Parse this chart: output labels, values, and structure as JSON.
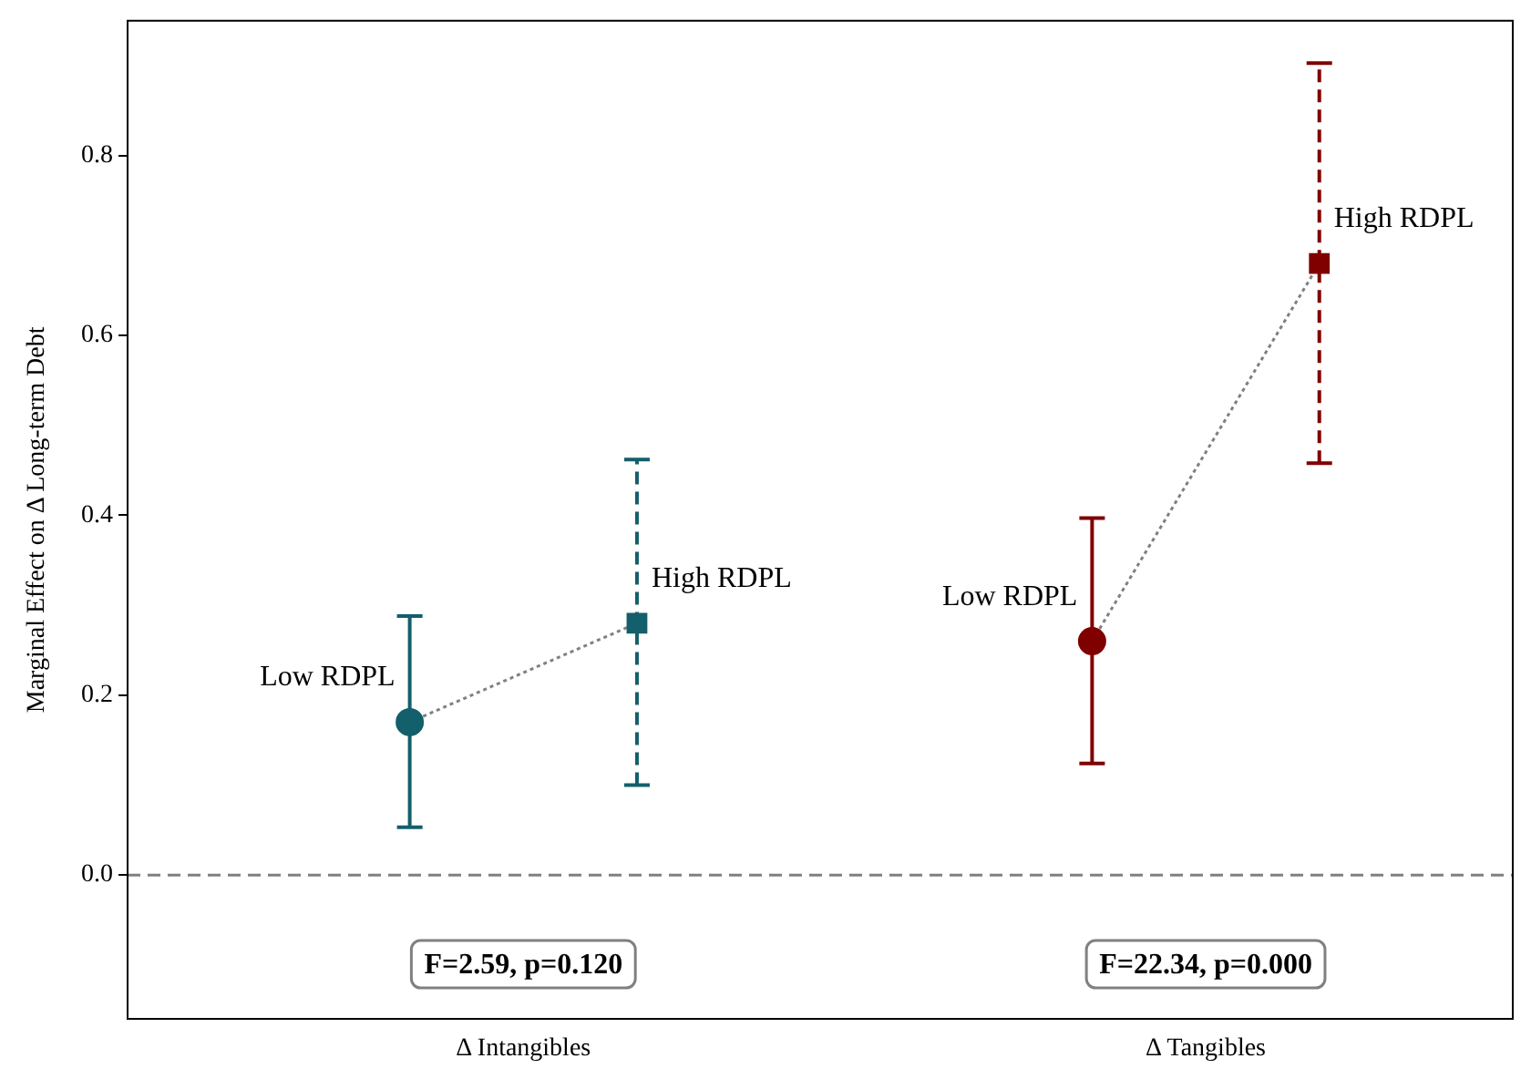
{
  "chart_data": {
    "type": "scatter",
    "ylabel": "Marginal Effect on Δ Long-term Debt",
    "categories": [
      "Δ Intangibles",
      "Δ Tangibles"
    ],
    "ylim": [
      -0.16,
      0.95
    ],
    "yticks": [
      {
        "value": 0,
        "label": "0.0"
      },
      {
        "value": 0.2,
        "label": "0.2"
      },
      {
        "value": 0.4,
        "label": "0.4"
      },
      {
        "value": 0.6,
        "label": "0.6"
      },
      {
        "value": 0.8,
        "label": "0.8"
      }
    ],
    "grid": false,
    "legend": false,
    "series": [
      {
        "name": "Low RDPL",
        "x": [
          "Δ Intangibles"
        ],
        "values": [
          0.17
        ],
        "errors": [
          [
            0.053,
            0.288
          ]
        ],
        "color": "#135f6b",
        "marker": "circle",
        "line_style": "solid"
      },
      {
        "name": "High RDPL",
        "x": [
          "Δ Intangibles"
        ],
        "values": [
          0.28
        ],
        "errors": [
          [
            0.1,
            0.462
          ]
        ],
        "color": "#135f6b",
        "marker": "square",
        "line_style": "dashed"
      },
      {
        "name": "Low RDPL",
        "x": [
          "Δ Tangibles"
        ],
        "values": [
          0.26
        ],
        "errors": [
          [
            0.124,
            0.397
          ]
        ],
        "color": "#800000",
        "marker": "circle",
        "line_style": "solid"
      },
      {
        "name": "High RDPL",
        "x": [
          "Δ Tangibles"
        ],
        "values": [
          0.68
        ],
        "errors": [
          [
            0.458,
            0.903
          ]
        ],
        "color": "#800000",
        "marker": "square",
        "line_style": "dashed"
      }
    ],
    "ref_lines": [
      {
        "axis": "y",
        "value": 0,
        "color": "#808080",
        "line_style": "dashed"
      }
    ],
    "annotations": [
      "F=2.59, p=0.120",
      "F=22.34, p=0.000"
    ]
  }
}
